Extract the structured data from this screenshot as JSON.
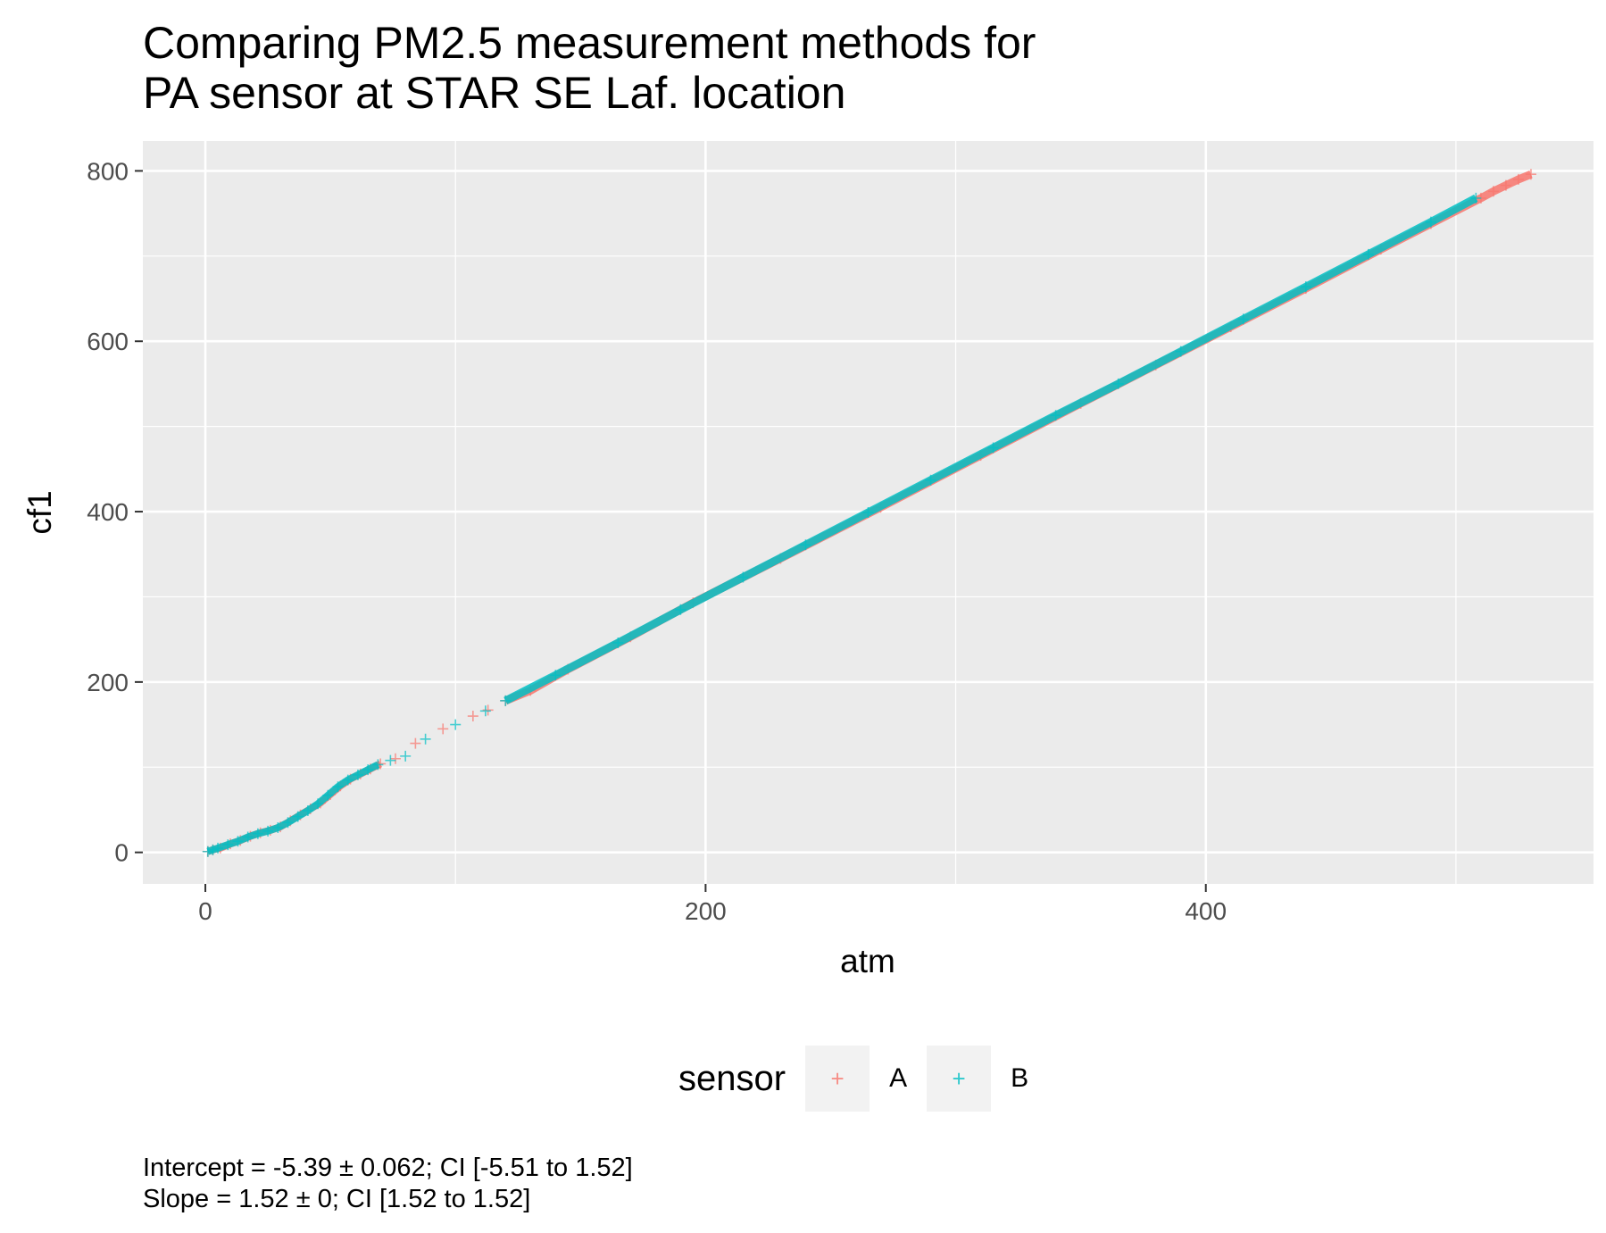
{
  "title": {
    "line1": "Comparing PM2.5 measurement methods for",
    "line2": "PA sensor at STAR SE Laf. location"
  },
  "footnote": {
    "line1": "Intercept = -5.39 ± 0.062; CI [-5.51 to 1.52]",
    "line2": "Slope = 1.52 ± 0; CI [1.52 to 1.52]"
  },
  "legend": {
    "title": "sensor",
    "position": "bottom",
    "entries": [
      {
        "label": "A",
        "color": "#F8766D",
        "symbol": "+"
      },
      {
        "label": "B",
        "color": "#00BFC4",
        "symbol": "+"
      }
    ]
  },
  "colors": {
    "panel_background": "#EBEBEB",
    "grid": "#FFFFFF",
    "sensor_A": "#F8766D",
    "sensor_B": "#00BFC4"
  },
  "chart_data": {
    "type": "scatter",
    "xlabel": "atm",
    "ylabel": "cf1",
    "xlim": [
      -25,
      555
    ],
    "ylim": [
      -37,
      835
    ],
    "x_ticks": [
      0,
      200,
      400
    ],
    "y_ticks": [
      0,
      200,
      400,
      600,
      800
    ],
    "grid": true,
    "marker": "+",
    "series": [
      {
        "name": "A",
        "color": "#F8766D",
        "points": [
          [
            1,
            1
          ],
          [
            3,
            3
          ],
          [
            6,
            5
          ],
          [
            10,
            10
          ],
          [
            14,
            14
          ],
          [
            18,
            19
          ],
          [
            22,
            23
          ],
          [
            26,
            26
          ],
          [
            30,
            30
          ],
          [
            34,
            37
          ],
          [
            38,
            44
          ],
          [
            42,
            51
          ],
          [
            46,
            58
          ],
          [
            50,
            68
          ],
          [
            54,
            78
          ],
          [
            58,
            86
          ],
          [
            62,
            92
          ],
          [
            66,
            98
          ],
          [
            70,
            104
          ],
          [
            76,
            110
          ],
          [
            84,
            128
          ],
          [
            95,
            145
          ],
          [
            107,
            160
          ],
          [
            113,
            167
          ],
          [
            120,
            178
          ],
          [
            130,
            190
          ],
          [
            145,
            215
          ],
          [
            170,
            253
          ],
          [
            195,
            293
          ],
          [
            230,
            345
          ],
          [
            270,
            405
          ],
          [
            310,
            466
          ],
          [
            350,
            527
          ],
          [
            380,
            572
          ],
          [
            410,
            617
          ],
          [
            440,
            662
          ],
          [
            470,
            708
          ],
          [
            490,
            738
          ],
          [
            510,
            768
          ],
          [
            515,
            776
          ],
          [
            520,
            783
          ],
          [
            525,
            790
          ],
          [
            530,
            796
          ]
        ]
      },
      {
        "name": "B",
        "color": "#00BFC4",
        "points": [
          [
            1,
            1
          ],
          [
            3,
            3
          ],
          [
            5,
            5
          ],
          [
            9,
            9
          ],
          [
            13,
            13
          ],
          [
            17,
            18
          ],
          [
            21,
            22
          ],
          [
            25,
            25
          ],
          [
            29,
            29
          ],
          [
            33,
            35
          ],
          [
            37,
            42
          ],
          [
            41,
            49
          ],
          [
            45,
            57
          ],
          [
            49,
            67
          ],
          [
            53,
            77
          ],
          [
            57,
            85
          ],
          [
            61,
            91
          ],
          [
            65,
            97
          ],
          [
            69,
            103
          ],
          [
            74,
            108
          ],
          [
            80,
            113
          ],
          [
            88,
            133
          ],
          [
            100,
            150
          ],
          [
            112,
            166
          ],
          [
            120,
            178
          ],
          [
            140,
            208
          ],
          [
            165,
            246
          ],
          [
            190,
            285
          ],
          [
            215,
            323
          ],
          [
            240,
            361
          ],
          [
            265,
            399
          ],
          [
            290,
            437
          ],
          [
            315,
            475
          ],
          [
            340,
            513
          ],
          [
            365,
            550
          ],
          [
            390,
            588
          ],
          [
            415,
            626
          ],
          [
            440,
            664
          ],
          [
            465,
            702
          ],
          [
            490,
            740
          ],
          [
            508,
            768
          ]
        ]
      }
    ]
  }
}
